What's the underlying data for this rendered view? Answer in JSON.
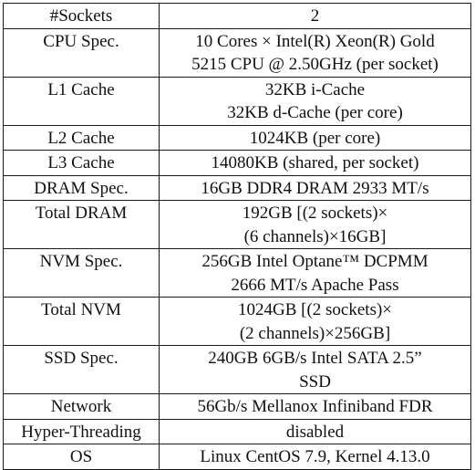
{
  "rows": [
    {
      "label": "#Sockets",
      "value": [
        "2"
      ]
    },
    {
      "label": "CPU Spec.",
      "value": [
        "10 Cores × Intel(R) Xeon(R) Gold",
        "5215 CPU @ 2.50GHz (per socket)"
      ]
    },
    {
      "label": "L1 Cache",
      "value": [
        "32KB i-Cache",
        "32KB d-Cache (per core)"
      ]
    },
    {
      "label": "L2 Cache",
      "value": [
        "1024KB (per core)"
      ]
    },
    {
      "label": "L3 Cache",
      "value": [
        "14080KB (shared, per socket)"
      ]
    },
    {
      "label": "DRAM Spec.",
      "value": [
        "16GB DDR4 DRAM 2933 MT/s"
      ]
    },
    {
      "label": "Total DRAM",
      "value": [
        "192GB [(2 sockets)×",
        "(6 channels)×16GB]"
      ]
    },
    {
      "label": "NVM Spec.",
      "value": [
        "256GB Intel Optane™ DCPMM",
        "2666 MT/s Apache Pass"
      ]
    },
    {
      "label": "Total NVM",
      "value": [
        "1024GB [(2 sockets)×",
        "(2 channels)×256GB]"
      ]
    },
    {
      "label": "SSD Spec.",
      "value": [
        "240GB 6GB/s Intel SATA 2.5”",
        "SSD"
      ]
    },
    {
      "label": "Network",
      "value": [
        "56Gb/s Mellanox Infiniband FDR"
      ]
    },
    {
      "label": "Hyper-Threading",
      "value": [
        "disabled"
      ]
    },
    {
      "label": "OS",
      "value": [
        "Linux CentOS 7.9, Kernel 4.13.0"
      ]
    }
  ]
}
